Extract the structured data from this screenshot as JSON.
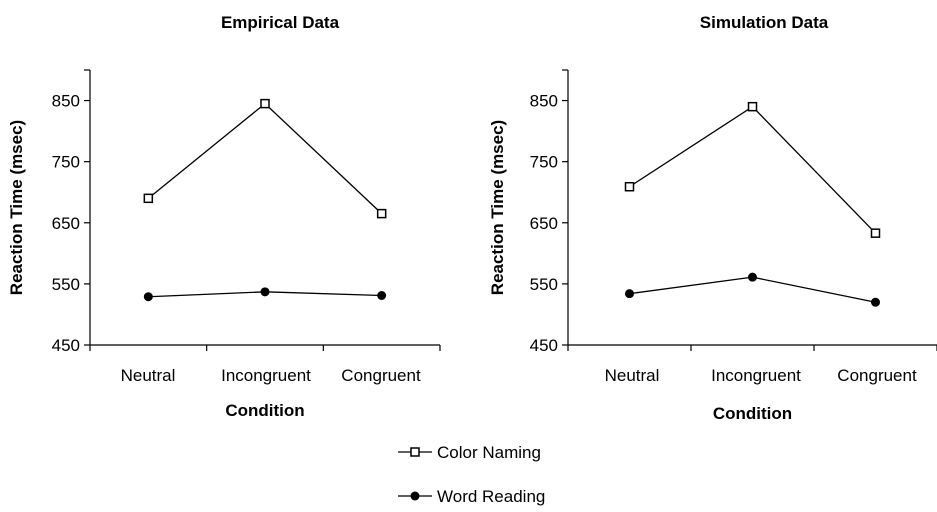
{
  "chart_data": [
    {
      "type": "line",
      "title": "Empirical Data",
      "xlabel": "Condition",
      "ylabel": "Reaction Time (msec)",
      "categories": [
        "Neutral",
        "Incongruent",
        "Congruent"
      ],
      "yticks": [
        "450",
        "550",
        "650",
        "750",
        "850"
      ],
      "ylim": [
        450,
        900
      ],
      "grid": false,
      "series": [
        {
          "name": "Color Naming",
          "marker": "open-square",
          "values": [
            690,
            845,
            665
          ]
        },
        {
          "name": "Word Reading",
          "marker": "filled-circle",
          "values": [
            529,
            537,
            531
          ]
        }
      ]
    },
    {
      "type": "line",
      "title": "Simulation Data",
      "xlabel": "Condition",
      "ylabel": "Reaction Time (msec)",
      "categories": [
        "Neutral",
        "Incongruent",
        "Congruent"
      ],
      "yticks": [
        "450",
        "550",
        "650",
        "750",
        "850"
      ],
      "ylim": [
        450,
        900
      ],
      "grid": false,
      "series": [
        {
          "name": "Color Naming",
          "marker": "open-square",
          "values": [
            709,
            840,
            633
          ]
        },
        {
          "name": "Word Reading",
          "marker": "filled-circle",
          "values": [
            534,
            561,
            520
          ]
        }
      ]
    }
  ],
  "legend": {
    "placement": "bottom-center",
    "items": [
      {
        "label": "Color Naming",
        "marker": "open-square"
      },
      {
        "label": "Word Reading",
        "marker": "filled-circle"
      }
    ]
  }
}
